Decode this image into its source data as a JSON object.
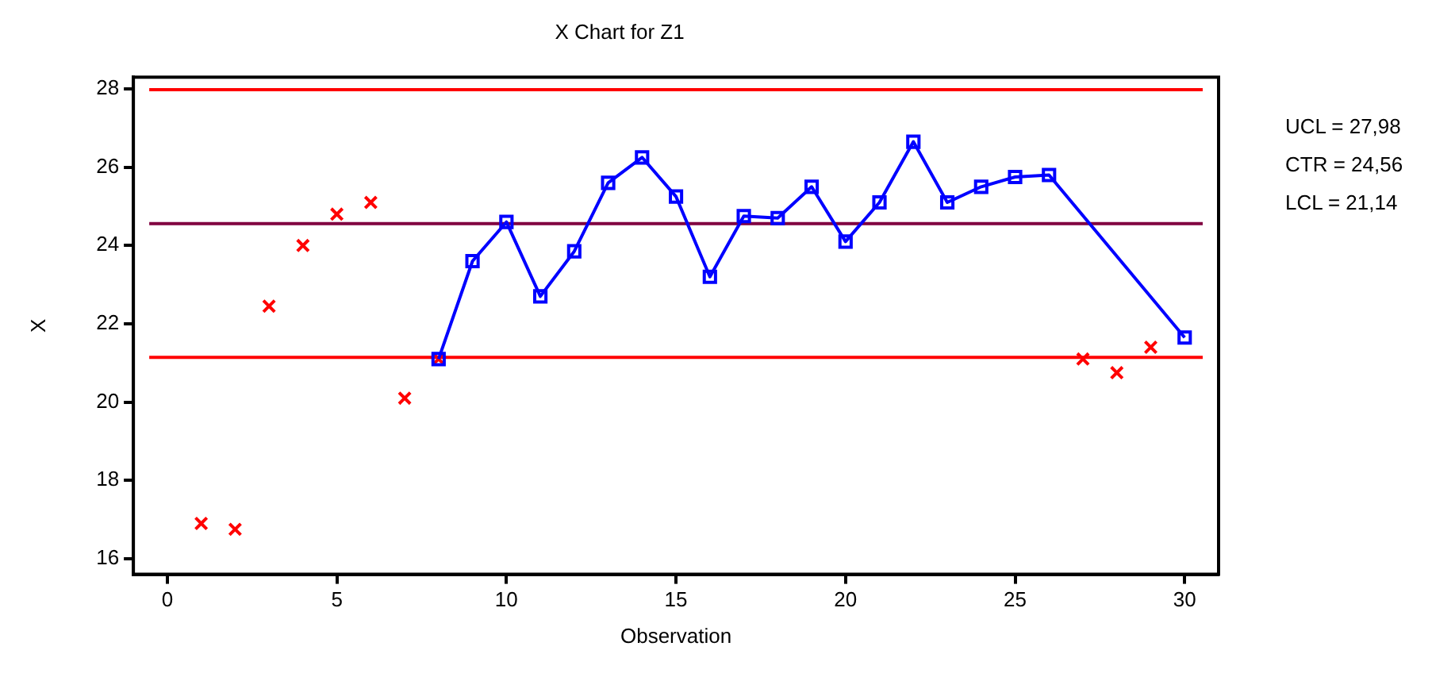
{
  "chart_data": {
    "type": "line",
    "title": "X Chart for Z1",
    "xlabel": "Observation",
    "ylabel": "X",
    "xlim": [
      -1,
      31
    ],
    "xticks": [
      0,
      5,
      10,
      15,
      20,
      25,
      30
    ],
    "ylim": [
      15.6,
      28.3
    ],
    "yticks": [
      16,
      18,
      20,
      22,
      24,
      26,
      28
    ],
    "grid": false,
    "legend": false,
    "series": [
      {
        "color": "#0000ff",
        "marker": "square",
        "line_style": "solid",
        "x": [
          8,
          9,
          10,
          11,
          12,
          13,
          14,
          15,
          16,
          17,
          18,
          19,
          20,
          21,
          22,
          23,
          24,
          25,
          26,
          30
        ],
        "values": [
          21.1,
          23.6,
          24.6,
          22.7,
          23.85,
          25.6,
          26.25,
          25.25,
          23.2,
          24.75,
          24.7,
          25.5,
          24.1,
          25.1,
          26.65,
          25.1,
          25.5,
          25.75,
          25.8,
          21.65
        ]
      },
      {
        "type": "scatter",
        "color": "#ff0000",
        "marker": "cross",
        "x": [
          1,
          2,
          3,
          4,
          5,
          6,
          7,
          8,
          27,
          28,
          29
        ],
        "values": [
          16.9,
          16.75,
          22.45,
          24.0,
          24.8,
          25.1,
          20.1,
          21.1,
          21.1,
          20.75,
          21.4
        ]
      }
    ],
    "ref_lines": [
      {
        "axis": "y",
        "value": 27.98,
        "color": "#ff0000"
      },
      {
        "axis": "y",
        "value": 24.56,
        "color": "#800040"
      },
      {
        "axis": "y",
        "value": 21.14,
        "color": "#ff0000"
      }
    ],
    "annotations": [
      "UCL = 27,98",
      "CTR = 24,56",
      "LCL = 21,14"
    ]
  }
}
